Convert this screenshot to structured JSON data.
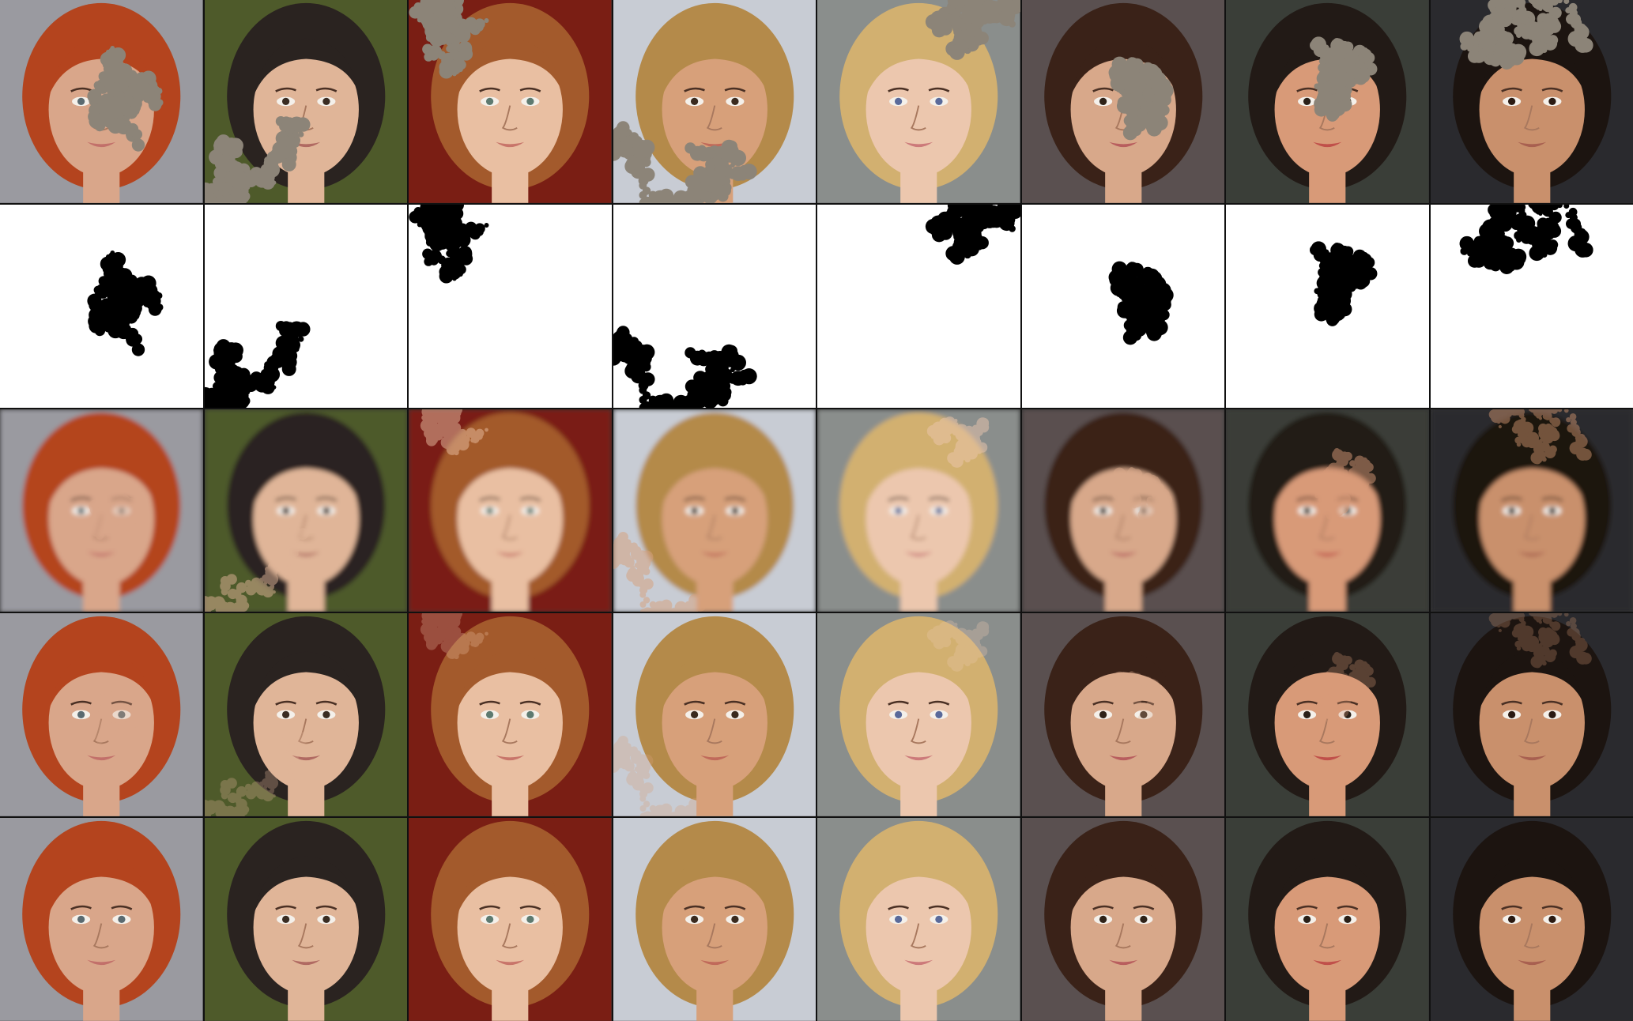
{
  "grid": {
    "rows": 5,
    "cols": 8
  },
  "row_types": [
    "masked-input",
    "binary-mask",
    "inpainted-result",
    "inpainted-result",
    "ground-truth"
  ],
  "colors": {
    "mask_fill": "#8c8478",
    "mask_black": "#000000",
    "mask_bg": "#ffffff"
  },
  "faces": [
    {
      "skin": "#d9a68a",
      "hair": "#b4441e",
      "bg": "#9a9aa0",
      "lip": "#c2706a",
      "eye": "#5a6a70",
      "mask_region": "center-right"
    },
    {
      "skin": "#e0b598",
      "hair": "#2a2320",
      "bg": "#4e5a2a",
      "lip": "#b06a62",
      "eye": "#3a2c22",
      "mask_region": "lower-center"
    },
    {
      "skin": "#e9bfa2",
      "hair": "#a35a2c",
      "bg": "#7a1e14",
      "lip": "#c8756a",
      "eye": "#5e7a70",
      "mask_region": "top-left"
    },
    {
      "skin": "#d7a07a",
      "hair": "#b48a4a",
      "bg": "#c8ccd4",
      "lip": "#c06a5a",
      "eye": "#3a2a1e",
      "mask_region": "bottom-left"
    },
    {
      "skin": "#ecc7ae",
      "hair": "#d2b070",
      "bg": "#8a8e8c",
      "lip": "#cc7a7a",
      "eye": "#5a6a9a",
      "mask_region": "top-right"
    },
    {
      "skin": "#d8a88a",
      "hair": "#3a2218",
      "bg": "#5a5050",
      "lip": "#b85e5e",
      "eye": "#2e2218",
      "mask_region": "center"
    },
    {
      "skin": "#d89a78",
      "hair": "#221a16",
      "bg": "#3a3e38",
      "lip": "#c0504a",
      "eye": "#2a2018",
      "mask_region": "center-low"
    },
    {
      "skin": "#c9906c",
      "hair": "#1c1410",
      "bg": "#2a2a2e",
      "lip": "#a86050",
      "eye": "#2a1a12",
      "mask_region": "top-right"
    }
  ]
}
